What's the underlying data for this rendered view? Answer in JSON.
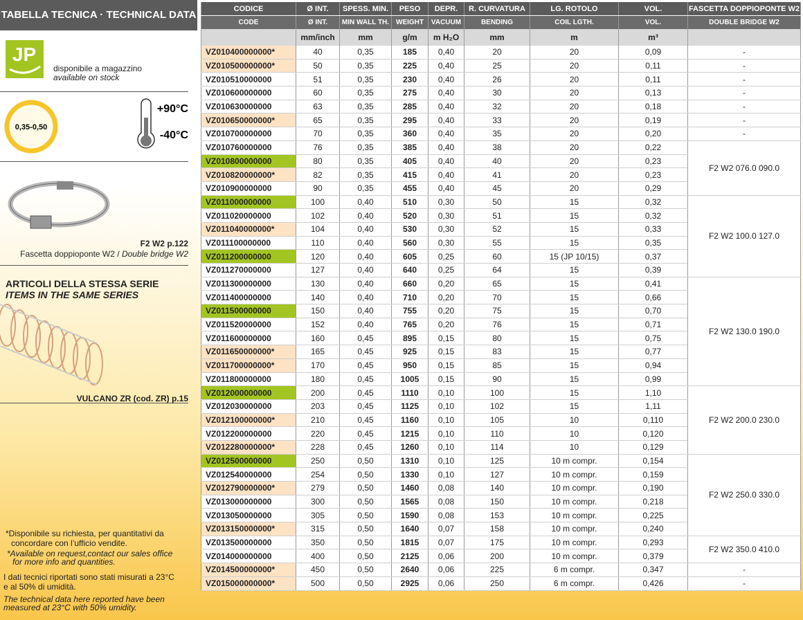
{
  "left_panel": {
    "title": "TABELLA TECNICA · TECHNICAL DATA",
    "stock": {
      "logo": "JP",
      "it": "disponibile a magazzino",
      "en": "available on stock"
    },
    "thickness": "0,35-0,50",
    "temp_max": "+90°C",
    "temp_min": "-40°C",
    "clamp": {
      "ref": "F2 W2 p.122",
      "it": "Fascetta doppioponte W2 / ",
      "en": "Double bridge W2"
    },
    "series": {
      "it": "ARTICOLI DELLA STESSA SERIE",
      "en": "ITEMS IN THE SAME SERIES",
      "ref": "VULCANO ZR (cod. ZR) p.15"
    },
    "notes": {
      "request_it": [
        "*Disponibile su richiesta, per quantitativi da",
        "concordare con l’ufficio vendite."
      ],
      "request_en": [
        "*Available on request,contact our sales office",
        "for more info and quantities."
      ],
      "measure_it": [
        "I dati tecnici riportati sono stati misurati a 23°C",
        "e al 50% di umidità."
      ],
      "measure_en": [
        "The technical data here reported have been",
        "measured at 23°C with 50% umidity."
      ]
    }
  },
  "table": {
    "header_it": [
      "CODICE",
      "Ø INT.",
      "SPESS. MIN.",
      "PESO",
      "DEPR.",
      "R. CURVATURA",
      "LG. ROTOLO",
      "VOL.",
      "FASCETTA DOPPIOPONTE W2"
    ],
    "header_en": [
      "CODE",
      "Ø INT.",
      "MIN WALL TH.",
      "WEIGHT",
      "VACUUM",
      "BENDING",
      "COIL LGTH.",
      "VOL.",
      "DOUBLE BRIDGE W2"
    ],
    "units": [
      null,
      "mm/inch",
      "mm",
      "g/m",
      "m H₂O",
      "mm",
      "m",
      "m³",
      null
    ],
    "code_colors": [
      "#fde2c4",
      "#fde2c4",
      "#ffffff",
      "#ffffff",
      "#ffffff",
      "#fde2c4",
      "#ffffff",
      "#ffffff",
      "#a3c522",
      "#fde2c4",
      "#ffffff",
      "#a3c522",
      "#ffffff",
      "#fde2c4",
      "#ffffff",
      "#a3c522",
      "#ffffff",
      "#ffffff",
      "#ffffff",
      "#a3c522",
      "#ffffff",
      "#ffffff",
      "#fde2c4",
      "#fde2c4",
      "#ffffff",
      "#a3c522",
      "#ffffff",
      "#fde2c4",
      "#ffffff",
      "#fde2c4",
      "#a3c522",
      "#ffffff",
      "#fde2c4",
      "#ffffff",
      "#ffffff",
      "#fde2c4",
      "#ffffff",
      "#ffffff",
      "#fde2c4",
      "#fde2c4"
    ],
    "rows": [
      [
        "VZ010400000000*",
        "40",
        "0,35",
        "185",
        "0,40",
        "20",
        "20",
        "0,09",
        "-"
      ],
      [
        "VZ010500000000*",
        "50",
        "0,35",
        "225",
        "0,40",
        "25",
        "20",
        "0,11",
        "-"
      ],
      [
        "VZ010510000000",
        "51",
        "0,35",
        "230",
        "0,40",
        "26",
        "20",
        "0,11",
        "-"
      ],
      [
        "VZ010600000000",
        "60",
        "0,35",
        "275",
        "0,40",
        "30",
        "20",
        "0,13",
        "-"
      ],
      [
        "VZ010630000000",
        "63",
        "0,35",
        "285",
        "0,40",
        "32",
        "20",
        "0,18",
        "-"
      ],
      [
        "VZ010650000000*",
        "65",
        "0,35",
        "295",
        "0,40",
        "33",
        "20",
        "0,19",
        "-"
      ],
      [
        "VZ010700000000",
        "70",
        "0,35",
        "360",
        "0,40",
        "35",
        "20",
        "0,20",
        "-"
      ],
      [
        "VZ010760000000",
        "76",
        "0,35",
        "385",
        "0,40",
        "38",
        "20",
        "0,22",
        "F2 W2 076.0 090.0"
      ],
      [
        "VZ010800000000",
        "80",
        "0,35",
        "405",
        "0,40",
        "40",
        "20",
        "0,23",
        null
      ],
      [
        "VZ010820000000*",
        "82",
        "0,35",
        "415",
        "0,40",
        "41",
        "20",
        "0,23",
        null
      ],
      [
        "VZ010900000000",
        "90",
        "0,35",
        "455",
        "0,40",
        "45",
        "20",
        "0,29",
        null
      ],
      [
        "VZ011000000000",
        "100",
        "0,40",
        "510",
        "0,30",
        "50",
        "15",
        "0,32",
        "F2 W2 100.0 127.0"
      ],
      [
        "VZ011020000000",
        "102",
        "0,40",
        "520",
        "0,30",
        "51",
        "15",
        "0,32",
        null
      ],
      [
        "VZ011040000000*",
        "104",
        "0,40",
        "530",
        "0,30",
        "52",
        "15",
        "0,33",
        null
      ],
      [
        "VZ011100000000",
        "110",
        "0,40",
        "560",
        "0,30",
        "55",
        "15",
        "0,35",
        null
      ],
      [
        "VZ011200000000",
        "120",
        "0,40",
        "605",
        "0,25",
        "60",
        "15 (JP 10/15)",
        "0,37",
        null
      ],
      [
        "VZ011270000000",
        "127",
        "0,40",
        "640",
        "0,25",
        "64",
        "15",
        "0,39",
        null
      ],
      [
        "VZ011300000000",
        "130",
        "0,40",
        "660",
        "0,20",
        "65",
        "15",
        "0,41",
        "F2 W2 130.0 190.0"
      ],
      [
        "VZ011400000000",
        "140",
        "0,40",
        "710",
        "0,20",
        "70",
        "15",
        "0,66",
        null
      ],
      [
        "VZ011500000000",
        "150",
        "0,40",
        "755",
        "0,20",
        "75",
        "15",
        "0,70",
        null
      ],
      [
        "VZ011520000000",
        "152",
        "0,40",
        "765",
        "0,20",
        "76",
        "15",
        "0,71",
        null
      ],
      [
        "VZ011600000000",
        "160",
        "0,45",
        "895",
        "0,15",
        "80",
        "15",
        "0,75",
        null
      ],
      [
        "VZ011650000000*",
        "165",
        "0,45",
        "925",
        "0,15",
        "83",
        "15",
        "0,77",
        null
      ],
      [
        "VZ011700000000*",
        "170",
        "0,45",
        "950",
        "0,15",
        "85",
        "15",
        "0,94",
        null
      ],
      [
        "VZ011800000000",
        "180",
        "0,45",
        "1005",
        "0,15",
        "90",
        "15",
        "0,99",
        null
      ],
      [
        "VZ012000000000",
        "200",
        "0,45",
        "1110",
        "0,10",
        "100",
        "15",
        "1,10",
        "F2 W2 200.0 230.0"
      ],
      [
        "VZ012030000000",
        "203",
        "0,45",
        "1125",
        "0,10",
        "102",
        "15",
        "1,11",
        null
      ],
      [
        "VZ012100000000*",
        "210",
        "0,45",
        "1160",
        "0,10",
        "105",
        "10",
        "0,110",
        null
      ],
      [
        "VZ012200000000",
        "220",
        "0,45",
        "1215",
        "0,10",
        "110",
        "10",
        "0,120",
        null
      ],
      [
        "VZ012280000000*",
        "228",
        "0,45",
        "1260",
        "0,10",
        "114",
        "10",
        "0,129",
        null
      ],
      [
        "VZ012500000000",
        "250",
        "0,50",
        "1310",
        "0,10",
        "125",
        "10 m compr.",
        "0,154",
        "F2 W2 250.0 330.0"
      ],
      [
        "VZ012540000000",
        "254",
        "0,50",
        "1330",
        "0,10",
        "127",
        "10 m compr.",
        "0,159",
        null
      ],
      [
        "VZ012790000000*",
        "279",
        "0,50",
        "1460",
        "0,08",
        "140",
        "10 m compr.",
        "0,190",
        null
      ],
      [
        "VZ013000000000",
        "300",
        "0,50",
        "1565",
        "0,08",
        "150",
        "10 m compr.",
        "0,218",
        null
      ],
      [
        "VZ013050000000",
        "305",
        "0,50",
        "1590",
        "0,08",
        "153",
        "10 m compr.",
        "0,225",
        null
      ],
      [
        "VZ013150000000*",
        "315",
        "0,50",
        "1640",
        "0,07",
        "158",
        "10 m compr.",
        "0,240",
        null
      ],
      [
        "VZ013500000000",
        "350",
        "0,50",
        "1815",
        "0,07",
        "175",
        "10 m compr.",
        "0,293",
        "F2 W2 350.0 410.0"
      ],
      [
        "VZ014000000000",
        "400",
        "0,50",
        "2125",
        "0,06",
        "200",
        "10 m compr.",
        "0,379",
        null
      ],
      [
        "VZ014500000000*",
        "450",
        "0,50",
        "2640",
        "0,06",
        "225",
        "6 m compr.",
        "0,347",
        "-"
      ],
      [
        "VZ015000000000*",
        "500",
        "0,50",
        "2925",
        "0,06",
        "250",
        "6 m compr.",
        "0,426",
        "-"
      ]
    ]
  }
}
